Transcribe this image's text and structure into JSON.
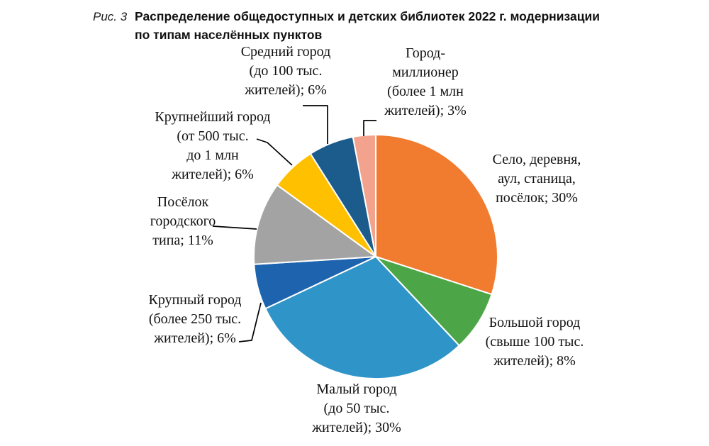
{
  "caption": {
    "figure_label": "Рис. 3",
    "title": "Распределение общедоступных и детских библиотек 2022 г. модернизации\nпо типам населённых пунктов"
  },
  "chart_data": {
    "type": "pie",
    "title": "Распределение общедоступных и детских библиотек 2022 г. модернизации по типам населённых пунктов",
    "figure_label": "Рис. 3",
    "unit": "%",
    "direction": "clockwise",
    "start_angle": "12-oclock",
    "legend_position": "outside-callouts",
    "slices": [
      {
        "key": "selo",
        "name": "Село, деревня, аул, станица, посёлок",
        "value": 30,
        "color": "#F17B2F",
        "label": "Село, деревня,\nаул, станица,\nпосёлок; 30%"
      },
      {
        "key": "bolshoy",
        "name": "Большой город (свыше 100 тыс. жителей)",
        "value": 8,
        "color": "#4CA647",
        "label": "Большой город\n(свыше 100 тыс.\nжителей); 8%"
      },
      {
        "key": "maly",
        "name": "Малый город (до 50 тыс. жителей)",
        "value": 30,
        "color": "#2F94C8",
        "label": "Малый город\n(до 50 тыс.\nжителей); 30%"
      },
      {
        "key": "krupny",
        "name": "Крупный город (более 250 тыс. жителей)",
        "value": 6,
        "color": "#1E63AE",
        "label": "Крупный город\n(более 250 тыс.\nжителей); 6%"
      },
      {
        "key": "pgt",
        "name": "Посёлок городского типа",
        "value": 11,
        "color": "#A3A3A3",
        "label": "Посёлок\nгородского\nтипа; 11%"
      },
      {
        "key": "krupneyshiy",
        "name": "Крупнейший город (от 500 тыс. до 1 млн жителей)",
        "value": 6,
        "color": "#FFC000",
        "label": "Крупнейший город\n(от 500 тыс.\nдо 1 млн\nжителей); 6%"
      },
      {
        "key": "sredniy",
        "name": "Средний город (до 100 тыс. жителей)",
        "value": 6,
        "color": "#1C5C8C",
        "label": "Средний город\n(до 100 тыс.\nжителей); 6%"
      },
      {
        "key": "millioner",
        "name": "Город-миллионер (более 1 млн жителей)",
        "value": 3,
        "color": "#F3A28D",
        "label": "Город-\nмиллионер\n(более 1 млн\nжителей); 3%"
      }
    ]
  }
}
